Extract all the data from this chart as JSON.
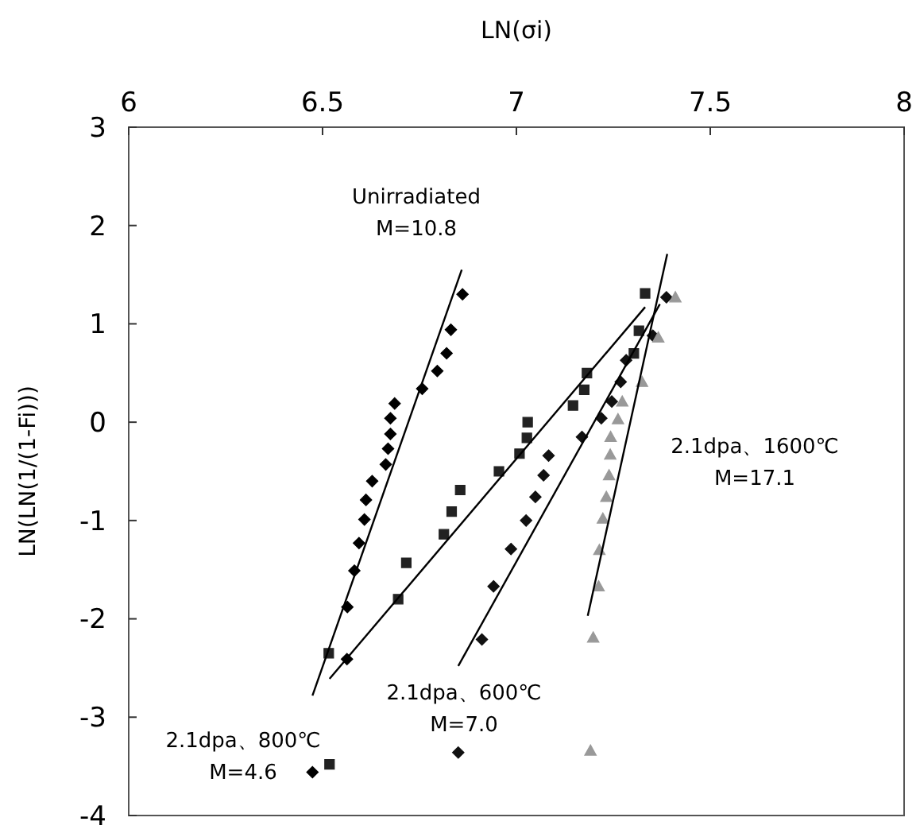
{
  "chart_data": {
    "type": "scatter",
    "xlabel": "LN(σi)",
    "ylabel": "LN(LN(1/(1-Fi)))",
    "xlim": [
      6,
      8
    ],
    "xticks": [
      6,
      6.5,
      7,
      7.5,
      8
    ],
    "ylim": [
      -4,
      3
    ],
    "yticks": [
      -4,
      -3,
      -2,
      -1,
      0,
      1,
      2,
      3
    ],
    "grid": false,
    "series": [
      {
        "name": "Unirradiated\nM=10.8",
        "color": "#000000",
        "marker": "diamond",
        "x": [
          6.861,
          6.831,
          6.82,
          6.796,
          6.757,
          6.686,
          6.675,
          6.675,
          6.669,
          6.663,
          6.628,
          6.612,
          6.608,
          6.594,
          6.582,
          6.564,
          6.563,
          6.474
        ],
        "values": [
          1.3,
          0.94,
          0.7,
          0.52,
          0.34,
          0.19,
          0.04,
          -0.12,
          -0.27,
          -0.43,
          -0.6,
          -0.79,
          -0.99,
          -1.23,
          -1.51,
          -1.88,
          -2.41,
          -3.56
        ]
      },
      {
        "name": "2.1dpa、800℃\nM=4.6",
        "color": "#222222",
        "marker": "square",
        "x": [
          7.332,
          7.316,
          7.303,
          7.182,
          7.175,
          7.146,
          7.029,
          7.027,
          7.008,
          6.955,
          6.855,
          6.833,
          6.813,
          6.716,
          6.695,
          6.516,
          6.518
        ],
        "values": [
          1.31,
          0.93,
          0.7,
          0.5,
          0.33,
          0.17,
          0.0,
          -0.16,
          -0.32,
          -0.5,
          -0.69,
          -0.91,
          -1.14,
          -1.43,
          -1.8,
          -2.35,
          -3.48
        ]
      },
      {
        "name": "2.1dpa、600℃\nM=7.0",
        "color": "#111111",
        "marker": "diamond",
        "x": [
          7.387,
          7.352,
          7.283,
          7.269,
          7.246,
          7.219,
          7.169,
          7.083,
          7.07,
          7.049,
          7.025,
          6.986,
          6.941,
          6.911,
          6.85
        ],
        "values": [
          1.27,
          0.88,
          0.63,
          0.41,
          0.21,
          0.04,
          -0.15,
          -0.34,
          -0.54,
          -0.76,
          -1.0,
          -1.29,
          -1.67,
          -2.21,
          -3.36
        ]
      },
      {
        "name": "2.1dpa、1600℃\nM=17.1",
        "color": "#999999",
        "marker": "triangle",
        "x": [
          7.41,
          7.366,
          7.324,
          7.273,
          7.262,
          7.243,
          7.242,
          7.239,
          7.232,
          7.223,
          7.214,
          7.212,
          7.198,
          7.191
        ],
        "values": [
          1.27,
          0.86,
          0.41,
          0.21,
          0.03,
          -0.15,
          -0.33,
          -0.54,
          -0.76,
          -0.98,
          -1.3,
          -1.67,
          -2.19,
          -3.34
        ]
      },
      {
        "type": "line",
        "color": "#000000",
        "x": [
          6.474,
          6.859
        ],
        "values": [
          -2.78,
          1.55
        ]
      },
      {
        "type": "line",
        "color": "#000000",
        "x": [
          6.518,
          7.332
        ],
        "values": [
          -2.61,
          1.17
        ]
      },
      {
        "type": "line",
        "color": "#000000",
        "x": [
          6.85,
          7.37
        ],
        "values": [
          -2.48,
          1.2
        ]
      },
      {
        "type": "line",
        "color": "#000000",
        "x": [
          7.184,
          7.389
        ],
        "values": [
          -1.97,
          1.71
        ]
      }
    ]
  }
}
